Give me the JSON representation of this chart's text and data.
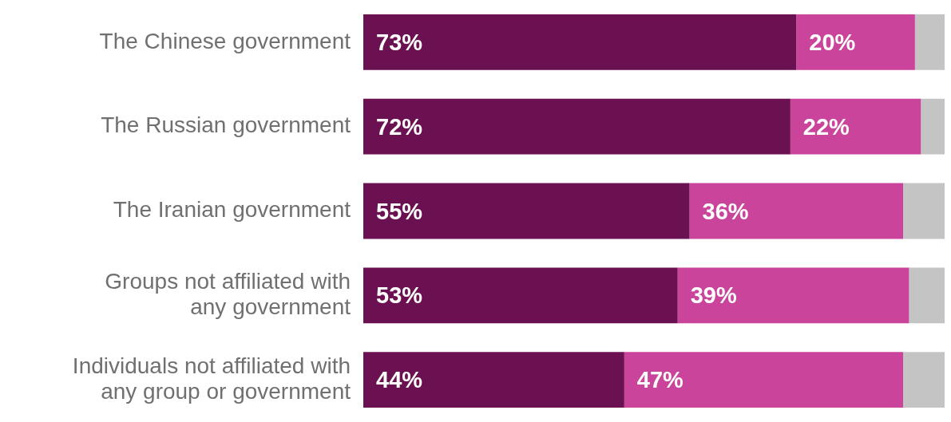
{
  "chart_data": {
    "type": "bar",
    "orientation": "horizontal",
    "stacked": true,
    "categories": [
      "The Chinese government",
      "The Russian government",
      "The Iranian government",
      "Groups not affiliated with any government",
      "Individuals not affiliated with any group or government"
    ],
    "series": [
      {
        "color": "#6b1152",
        "values": [
          73,
          72,
          55,
          53,
          44
        ],
        "value_labels": [
          "73%",
          "72%",
          "55%",
          "53%",
          "44%"
        ]
      },
      {
        "color": "#c9449a",
        "values": [
          20,
          22,
          36,
          39,
          47
        ],
        "value_labels": [
          "20%",
          "22%",
          "36%",
          "39%",
          "47%"
        ]
      },
      {
        "color": "#c4c4c4",
        "values": [
          5,
          4,
          7,
          6,
          7
        ]
      }
    ],
    "legend": false
  }
}
